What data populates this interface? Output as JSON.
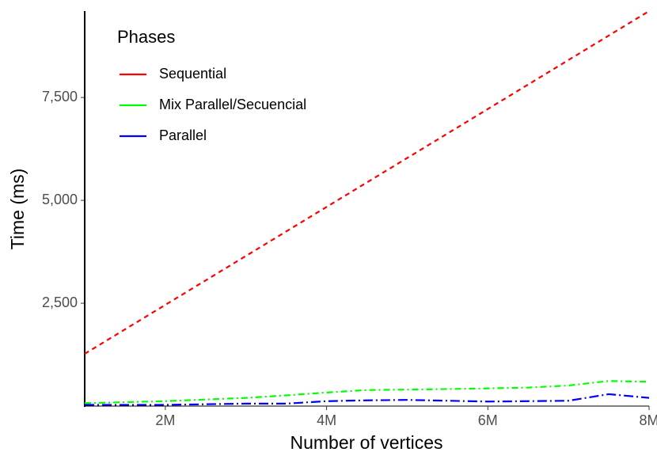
{
  "chart_data": {
    "type": "line",
    "x_label": "Number of vertices",
    "y_label": "Time (ms)",
    "legend_title": "Phases",
    "legend_position": "top-left",
    "xlim": [
      1000000,
      8000000
    ],
    "ylim": [
      0,
      9600
    ],
    "xticks": [
      {
        "value": 2000000,
        "label": "2M"
      },
      {
        "value": 4000000,
        "label": "4M"
      },
      {
        "value": 6000000,
        "label": "6M"
      },
      {
        "value": 8000000,
        "label": "8M"
      }
    ],
    "yticks": [
      {
        "value": 2500,
        "label": "2,500"
      },
      {
        "value": 5000,
        "label": "5,000"
      },
      {
        "value": 7500,
        "label": "7,500"
      }
    ],
    "series": [
      {
        "name": "Sequential",
        "color": "#ff0000",
        "dash": "6,5",
        "x": [
          1000000,
          2000000,
          3000000,
          4000000,
          5000000,
          6000000,
          7000000,
          8000000
        ],
        "values": [
          1270,
          2460,
          3650,
          4840,
          6030,
          7220,
          8410,
          9600
        ]
      },
      {
        "name": "Mix Parallel/Secuencial",
        "color": "#00ff00",
        "dash": "8,4,2,4",
        "x": [
          1000000,
          2000000,
          3000000,
          3500000,
          4000000,
          4500000,
          5000000,
          6000000,
          6500000,
          7000000,
          7500000,
          8000000
        ],
        "values": [
          70,
          120,
          200,
          260,
          330,
          390,
          400,
          430,
          450,
          500,
          610,
          590
        ]
      },
      {
        "name": "Parallel",
        "color": "#0000ff",
        "dash": "12,4,2,4",
        "x": [
          1000000,
          2000000,
          3000000,
          3500000,
          4000000,
          4500000,
          5000000,
          6000000,
          7000000,
          7500000,
          8000000
        ],
        "values": [
          30,
          30,
          60,
          60,
          120,
          140,
          150,
          110,
          130,
          290,
          200
        ]
      }
    ]
  }
}
